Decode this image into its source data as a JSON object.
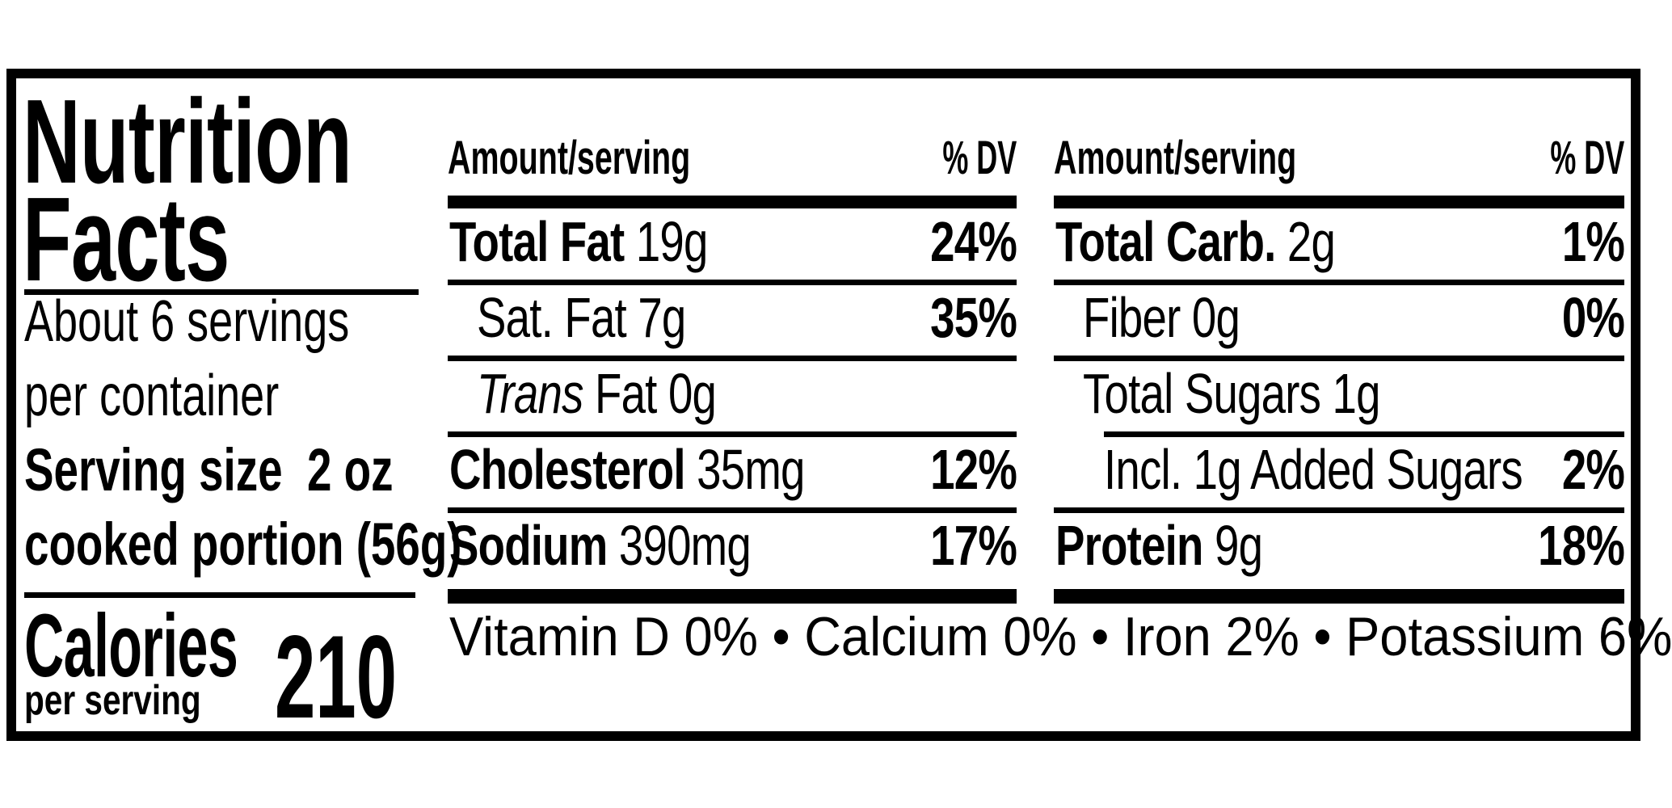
{
  "colors": {
    "ink": "#000000",
    "paper": "#ffffff"
  },
  "label": {
    "title_line1": "Nutrition",
    "title_line2": "Facts",
    "servings_line1": "About 6 servings",
    "servings_line2": "per container",
    "serving_size_line1": "Serving size  2 oz",
    "serving_size_line2": "cooked portion (56g)",
    "calories_word": "Calories",
    "calories_sub": "per serving",
    "calories_value": "210"
  },
  "columns": [
    {
      "header": {
        "amount": "Amount/serving",
        "dv": "% DV"
      },
      "rows": [
        {
          "italic_prefix": "",
          "label": "Total Fat",
          "value": " 19g",
          "dv": "24%",
          "bold": true,
          "indent": 0,
          "separator": "full"
        },
        {
          "italic_prefix": "",
          "label": "Sat. Fat",
          "value": " 7g",
          "dv": "35%",
          "bold": false,
          "indent": 1,
          "separator": "full"
        },
        {
          "italic_prefix": "Trans",
          "label": " Fat",
          "value": " 0g",
          "dv": "",
          "bold": false,
          "indent": 1,
          "separator": "full"
        },
        {
          "italic_prefix": "",
          "label": "Cholesterol",
          "value": " 35mg",
          "dv": "12%",
          "bold": true,
          "indent": 0,
          "separator": "full"
        },
        {
          "italic_prefix": "",
          "label": "Sodium",
          "value": " 390mg",
          "dv": "17%",
          "bold": true,
          "indent": 0,
          "separator": "none"
        }
      ]
    },
    {
      "header": {
        "amount": "Amount/serving",
        "dv": "% DV"
      },
      "rows": [
        {
          "italic_prefix": "",
          "label": "Total Carb.",
          "value": " 2g",
          "dv": "1%",
          "bold": true,
          "indent": 0,
          "separator": "full"
        },
        {
          "italic_prefix": "",
          "label": "Fiber",
          "value": " 0g",
          "dv": "0%",
          "bold": false,
          "indent": 1,
          "separator": "full"
        },
        {
          "italic_prefix": "",
          "label": "Total Sugars",
          "value": " 1g",
          "dv": "",
          "bold": false,
          "indent": 1,
          "separator": "indented"
        },
        {
          "italic_prefix": "",
          "label": "Incl. 1g Added Sugars",
          "value": "",
          "dv": "2%",
          "bold": false,
          "indent": 2,
          "separator": "full"
        },
        {
          "italic_prefix": "",
          "label": "Protein",
          "value": " 9g",
          "dv": "18%",
          "bold": true,
          "indent": 0,
          "separator": "none"
        }
      ]
    }
  ],
  "footer": "Vitamin D 0% • Calcium 0% • Iron 2% • Potassium 6%"
}
